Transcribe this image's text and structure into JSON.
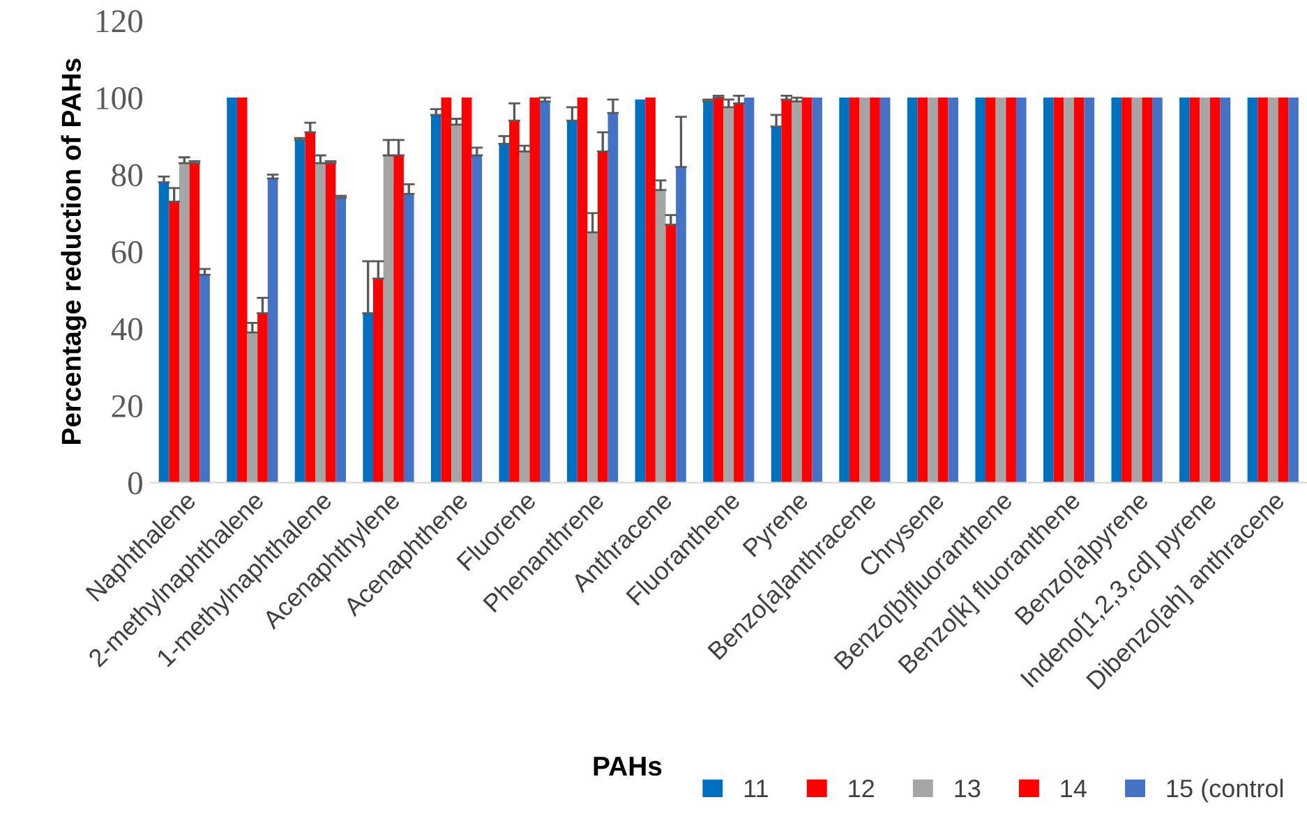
{
  "chart_data": {
    "type": "bar",
    "xlabel": "PAHs",
    "ylabel": "Percentage reduction of PAHs",
    "categories": [
      "Naphthalene",
      "2-methylnaphthalene",
      "1-methylnaphthalene",
      "Acenaphthylene",
      "Acenaphthene",
      "Fluorene",
      "Phenanthrene",
      "Anthracene",
      "Fluoranthene",
      "Pyrene",
      "Benzo[a]anthracene",
      "Chrysene",
      "Benzo[b]fluoranthene",
      "Benzo[k] fluoranthene",
      "Benzo[a]pyrene",
      "Indeno[1,2,3,cd] pyrene",
      "Dibenzo[ah] anthracene"
    ],
    "series": [
      {
        "name": "11",
        "color": "#0070c0",
        "values": [
          78,
          100,
          89,
          44,
          95.5,
          88,
          94,
          99.5,
          99,
          92.5,
          100,
          100,
          100,
          100,
          100,
          100,
          100
        ],
        "errors": [
          [
            78,
            79.5
          ],
          null,
          [
            89,
            89.5
          ],
          [
            44,
            57.5
          ],
          [
            95.5,
            97
          ],
          [
            88,
            90
          ],
          [
            94,
            97.5
          ],
          null,
          [
            99,
            99.5
          ],
          [
            92.5,
            95.5
          ],
          null,
          null,
          null,
          null,
          null,
          null,
          null
        ]
      },
      {
        "name": "12",
        "color": "#ff0000",
        "values": [
          73,
          100,
          91,
          53,
          100,
          94,
          100,
          100,
          100,
          99.5,
          100,
          100,
          100,
          100,
          100,
          100,
          100
        ],
        "errors": [
          [
            73,
            76.5
          ],
          null,
          [
            91,
            93.5
          ],
          [
            53,
            57.5
          ],
          null,
          [
            94,
            98.5
          ],
          null,
          null,
          [
            100,
            100.5
          ],
          [
            99.5,
            100.5
          ],
          null,
          null,
          null,
          null,
          null,
          null,
          null
        ]
      },
      {
        "name": "13",
        "color": "#a5a5a5",
        "values": [
          83,
          39,
          83,
          85,
          93,
          86,
          65,
          76,
          97.5,
          99,
          100,
          100,
          100,
          100,
          100,
          100,
          100
        ],
        "errors": [
          [
            83,
            84.5
          ],
          [
            39,
            41.5
          ],
          [
            83,
            85
          ],
          [
            85,
            89
          ],
          [
            93,
            94.5
          ],
          [
            86,
            87.5
          ],
          [
            65,
            70
          ],
          [
            76,
            78.5
          ],
          [
            97.5,
            99.5
          ],
          [
            99,
            100
          ],
          null,
          null,
          null,
          null,
          null,
          null,
          null
        ]
      },
      {
        "name": "14",
        "color": "#ff0000",
        "values": [
          83,
          44,
          83,
          85,
          100,
          100,
          86,
          67,
          98.5,
          100,
          100,
          100,
          100,
          100,
          100,
          100,
          100
        ],
        "errors": [
          [
            83,
            83.5
          ],
          [
            44,
            48
          ],
          [
            83,
            83.5
          ],
          [
            85,
            89
          ],
          null,
          null,
          [
            86,
            91
          ],
          [
            67,
            69.5
          ],
          [
            98.5,
            100.5
          ],
          null,
          null,
          null,
          null,
          null,
          null,
          null,
          null
        ]
      },
      {
        "name": "15 (control",
        "color": "#4472c4",
        "values": [
          54,
          79,
          74,
          75,
          85,
          99,
          96,
          82,
          100,
          100,
          100,
          100,
          100,
          100,
          100,
          100,
          100
        ],
        "errors": [
          [
            54,
            55.5
          ],
          [
            79,
            80
          ],
          [
            74,
            74.5
          ],
          [
            75,
            77.5
          ],
          [
            85,
            87
          ],
          [
            99,
            100
          ],
          [
            96,
            99.5
          ],
          [
            82,
            95
          ],
          null,
          null,
          null,
          null,
          null,
          null,
          null,
          null,
          null
        ]
      }
    ],
    "ylim": [
      0,
      120
    ],
    "yticks": [
      0,
      20,
      40,
      60,
      80,
      100,
      120
    ],
    "grid": false,
    "legend": "bottom right"
  }
}
